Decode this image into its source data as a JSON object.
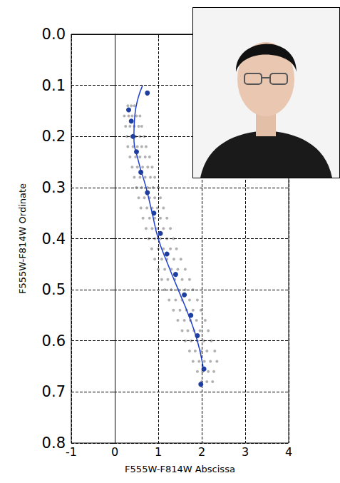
{
  "chart_data": {
    "type": "scatter",
    "xlabel": "F555W-F814W Abscissa",
    "ylabel": "F555W-F814W Ordinate",
    "xlim": [
      -1,
      4
    ],
    "xticks": [
      -1,
      0,
      1,
      2,
      3,
      4
    ],
    "ylim": [
      0.8,
      0.0
    ],
    "yticks": [
      {
        "value": 0.0,
        "label": "0.0"
      },
      0.1,
      0.2,
      0.3,
      0.4,
      0.5,
      0.6,
      0.7,
      0.8
    ],
    "grid": true,
    "series": [
      {
        "type": "scatter",
        "color": "#222222",
        "marker": "circle",
        "x": [
          0.3,
          0.38,
          0.45,
          0.22,
          0.32,
          0.4,
          0.5,
          0.58,
          0.25,
          0.35,
          0.45,
          0.55,
          0.62,
          0.28,
          0.38,
          0.48,
          0.58,
          0.68,
          0.3,
          0.42,
          0.52,
          0.62,
          0.72,
          0.35,
          0.48,
          0.58,
          0.7,
          0.8,
          0.4,
          0.52,
          0.64,
          0.76,
          0.86,
          0.45,
          0.58,
          0.7,
          0.82,
          0.92,
          0.5,
          0.62,
          0.75,
          0.88,
          1.0,
          0.55,
          0.68,
          0.8,
          0.92,
          1.05,
          0.6,
          0.74,
          0.86,
          0.98,
          1.12,
          0.65,
          0.8,
          0.92,
          1.05,
          1.2,
          0.72,
          0.86,
          0.98,
          1.12,
          1.28,
          0.78,
          0.92,
          1.05,
          1.2,
          1.35,
          0.85,
          1.0,
          1.12,
          1.28,
          1.42,
          0.92,
          1.08,
          1.2,
          1.36,
          1.52,
          1.0,
          1.15,
          1.3,
          1.45,
          1.62,
          1.08,
          1.22,
          1.38,
          1.55,
          1.72,
          1.15,
          1.3,
          1.46,
          1.62,
          1.8,
          1.25,
          1.4,
          1.55,
          1.72,
          1.9,
          1.35,
          1.5,
          1.65,
          1.8,
          1.98,
          1.45,
          1.6,
          1.74,
          1.88,
          2.08,
          1.55,
          1.68,
          1.82,
          1.96,
          2.15,
          1.62,
          1.76,
          1.9,
          2.05,
          2.22,
          1.72,
          1.85,
          1.98,
          2.12,
          2.3,
          1.8,
          1.94,
          2.06,
          2.2,
          2.35,
          1.9,
          2.02,
          2.15,
          2.28,
          2.0,
          2.12,
          2.25
        ],
        "values": [
          0.14,
          0.14,
          0.14,
          0.16,
          0.16,
          0.16,
          0.16,
          0.16,
          0.18,
          0.18,
          0.18,
          0.18,
          0.18,
          0.2,
          0.2,
          0.2,
          0.2,
          0.2,
          0.22,
          0.22,
          0.22,
          0.22,
          0.22,
          0.24,
          0.24,
          0.24,
          0.24,
          0.24,
          0.26,
          0.26,
          0.26,
          0.26,
          0.26,
          0.28,
          0.28,
          0.28,
          0.28,
          0.28,
          0.3,
          0.3,
          0.3,
          0.3,
          0.3,
          0.32,
          0.32,
          0.32,
          0.32,
          0.32,
          0.34,
          0.34,
          0.34,
          0.34,
          0.34,
          0.36,
          0.36,
          0.36,
          0.36,
          0.36,
          0.38,
          0.38,
          0.38,
          0.38,
          0.38,
          0.4,
          0.4,
          0.4,
          0.4,
          0.4,
          0.42,
          0.42,
          0.42,
          0.42,
          0.42,
          0.44,
          0.44,
          0.44,
          0.44,
          0.44,
          0.46,
          0.46,
          0.46,
          0.46,
          0.46,
          0.48,
          0.48,
          0.48,
          0.48,
          0.48,
          0.5,
          0.5,
          0.5,
          0.5,
          0.5,
          0.52,
          0.52,
          0.52,
          0.52,
          0.52,
          0.54,
          0.54,
          0.54,
          0.54,
          0.54,
          0.56,
          0.56,
          0.56,
          0.56,
          0.56,
          0.58,
          0.58,
          0.58,
          0.58,
          0.58,
          0.6,
          0.6,
          0.6,
          0.6,
          0.6,
          0.62,
          0.62,
          0.62,
          0.62,
          0.62,
          0.64,
          0.64,
          0.64,
          0.64,
          0.64,
          0.66,
          0.66,
          0.66,
          0.66,
          0.68,
          0.68,
          0.68
        ]
      },
      {
        "type": "line",
        "color": "#1f3fd0",
        "line_style": "solid",
        "x": [
          0.64,
          0.52,
          0.46,
          0.44,
          0.55,
          0.72,
          0.86,
          1.0,
          1.22,
          1.46,
          1.7,
          1.9,
          2.03
        ],
        "values": [
          0.1,
          0.13,
          0.16,
          0.2,
          0.25,
          0.3,
          0.35,
          0.4,
          0.45,
          0.5,
          0.55,
          0.6,
          0.65
        ]
      },
      {
        "type": "scatter",
        "color": "#1f3fa0",
        "marker": "circle",
        "x": [
          0.75,
          0.32,
          0.38,
          0.42,
          0.5,
          0.6,
          0.75,
          0.9,
          1.05,
          1.2,
          1.4,
          1.6,
          1.75,
          1.9,
          2.05,
          1.98
        ],
        "values": [
          0.115,
          0.148,
          0.17,
          0.2,
          0.23,
          0.27,
          0.31,
          0.35,
          0.39,
          0.43,
          0.47,
          0.51,
          0.55,
          0.59,
          0.655,
          0.685
        ]
      }
    ]
  }
}
